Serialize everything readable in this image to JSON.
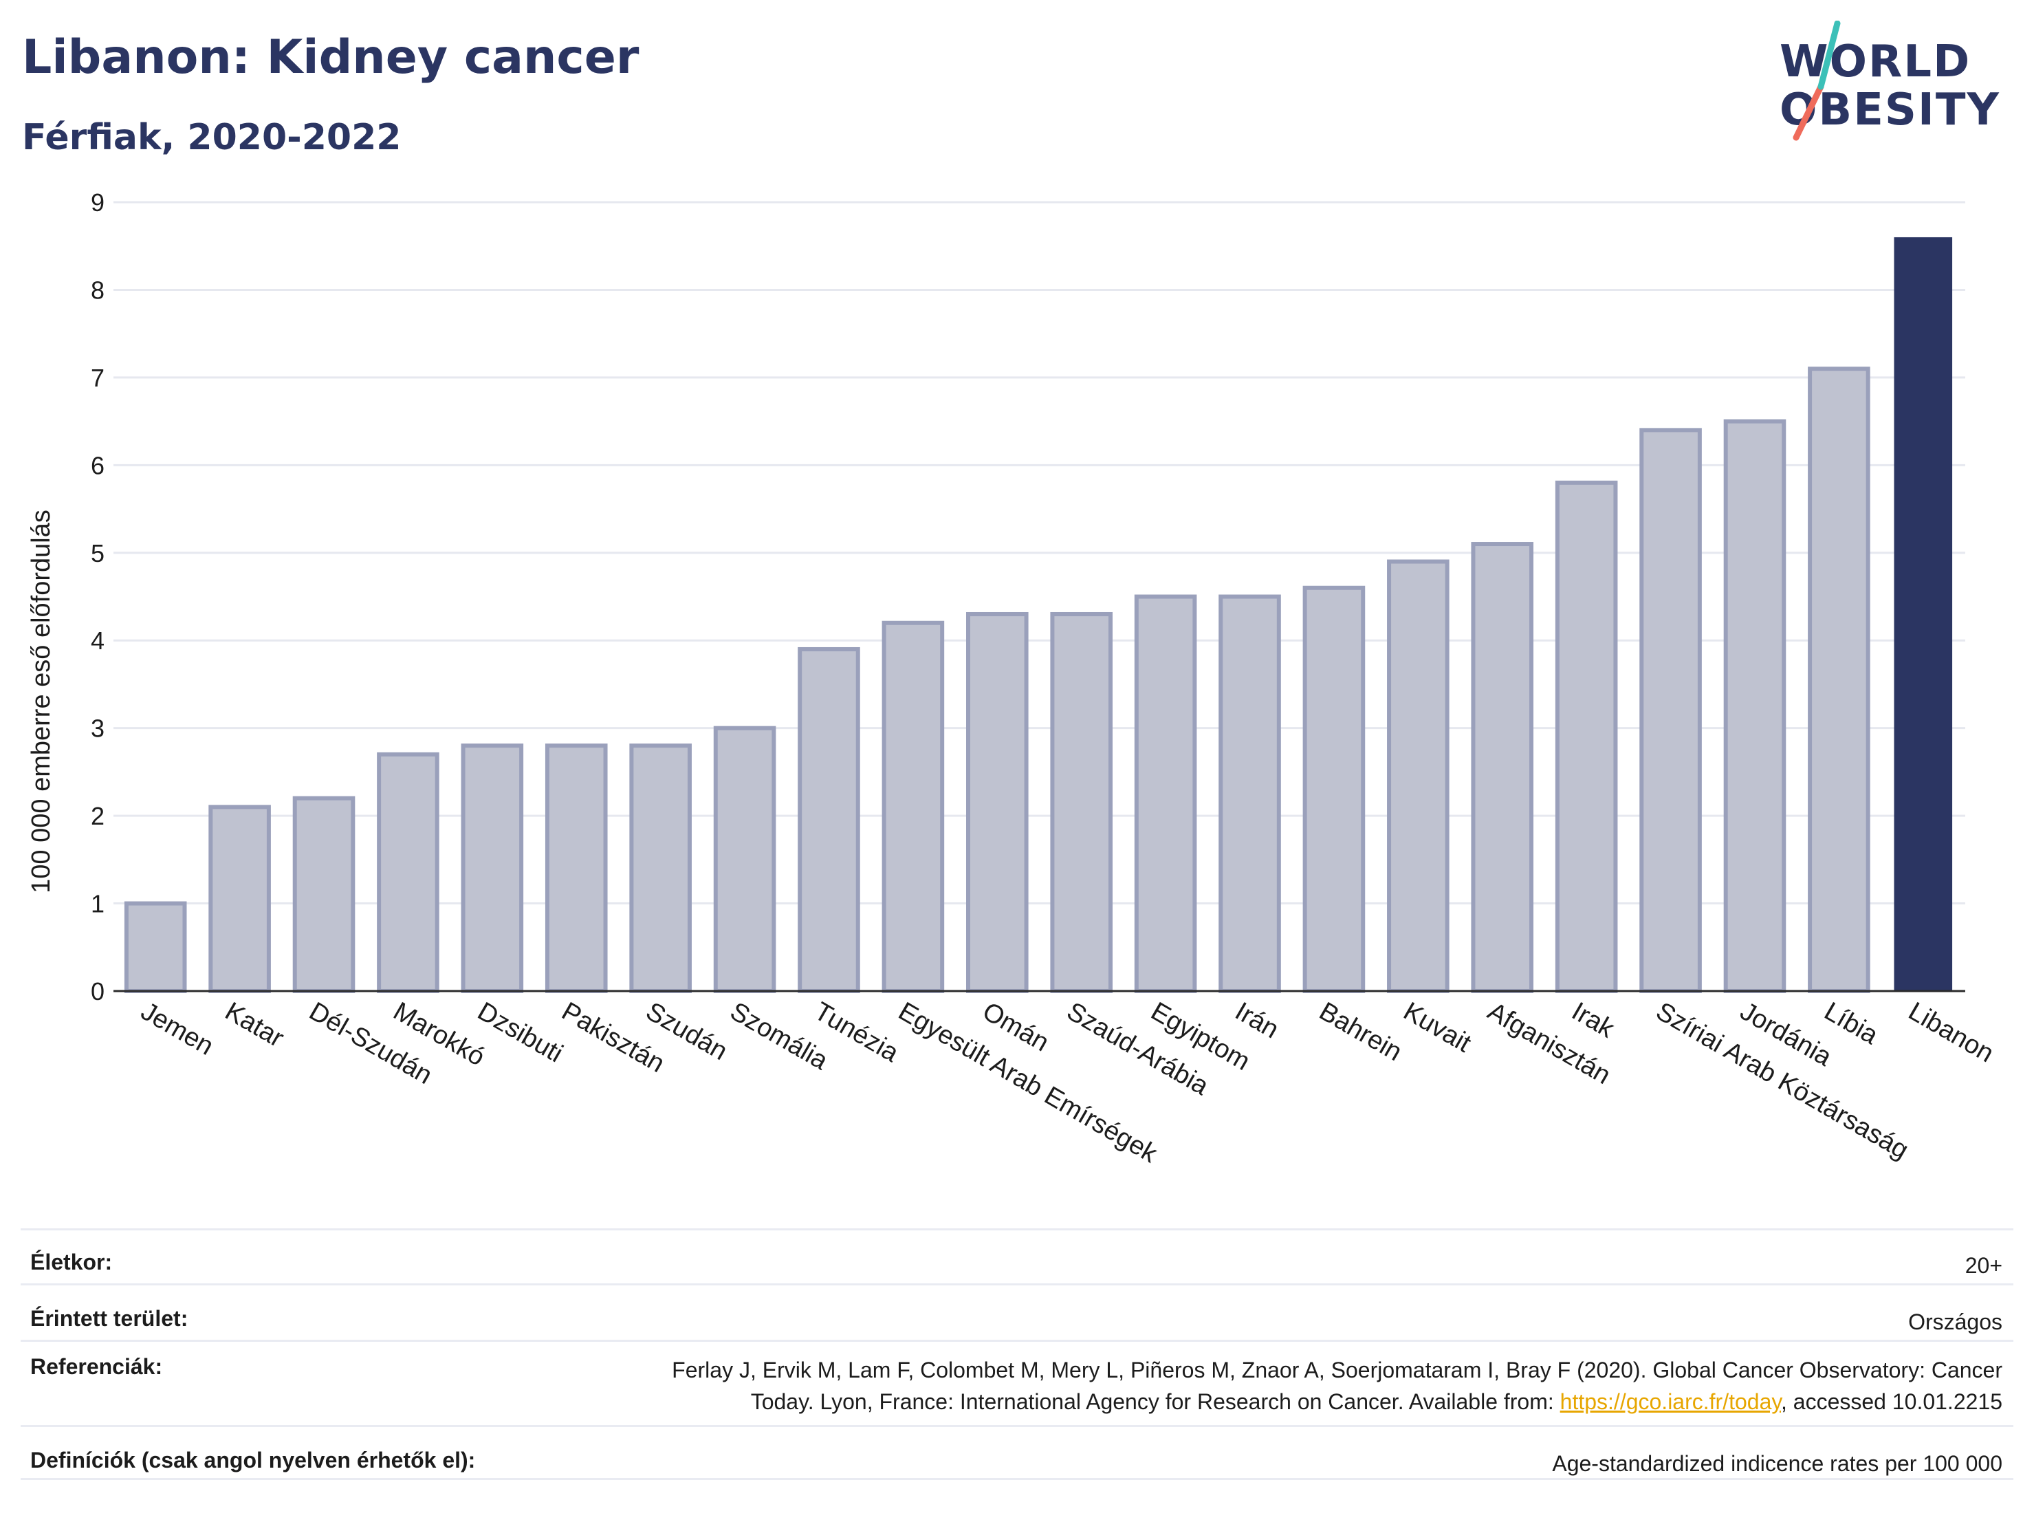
{
  "header": {
    "title": "Libanon: Kidney cancer",
    "subtitle": "Férfiak, 2020-2022"
  },
  "logo": {
    "line1": "WORLD",
    "line2": "OBESITY",
    "colors": {
      "navy": "#2b3562",
      "teal": "#3cc0b8",
      "coral": "#ef6b5b"
    }
  },
  "chart_data": {
    "type": "bar",
    "ylabel": "100 000 emberre eső előfordulás",
    "ylim": [
      0,
      9
    ],
    "yticks": [
      0,
      1,
      2,
      3,
      4,
      5,
      6,
      7,
      8,
      9
    ],
    "grid": true,
    "categories": [
      "Jemen",
      "Katar",
      "Dél-Szudán",
      "Marokkó",
      "Dzsibuti",
      "Pakisztán",
      "Szudán",
      "Szomália",
      "Tunézia",
      "Egyesült Arab Emírségek",
      "Omán",
      "Szaúd-Arábia",
      "Egyiptom",
      "Irán",
      "Bahrein",
      "Kuvait",
      "Afganisztán",
      "Irak",
      "Szíriai Arab Köztársaság",
      "Jordánia",
      "Líbia",
      "Libanon"
    ],
    "values": [
      1.0,
      2.1,
      2.2,
      2.7,
      2.8,
      2.8,
      2.8,
      3.0,
      3.9,
      4.2,
      4.3,
      4.3,
      4.5,
      4.5,
      4.6,
      4.9,
      5.1,
      5.8,
      6.4,
      6.5,
      7.1,
      8.6
    ],
    "highlight": "Libanon",
    "colors": {
      "bar": "#bfc2d0",
      "bar_border": "#9aa0bb",
      "highlight": "#2b3562",
      "grid": "#e6e8ef",
      "axis": "#2b2b2b"
    }
  },
  "meta": {
    "age_label": "Életkor:",
    "age_value": "20+",
    "area_label": "Érintett terület:",
    "area_value": "Országos",
    "ref_label": "Referenciák:",
    "ref_line1": "Ferlay J, Ervik M, Lam F, Colombet M, Mery L, Piñeros M, Znaor A, Soerjomataram I, Bray F (2020). Global Cancer Observatory: Cancer",
    "ref_line2_pre": "Today. Lyon, France: International Agency for Research on Cancer. Available from: ",
    "ref_link": "https://gco.iarc.fr/today",
    "ref_line2_post": ", accessed 10.01.2215",
    "def_label": "Definíciók (csak angol nyelven érhetők el):",
    "def_value": "Age-standardized indicence rates per 100 000"
  }
}
